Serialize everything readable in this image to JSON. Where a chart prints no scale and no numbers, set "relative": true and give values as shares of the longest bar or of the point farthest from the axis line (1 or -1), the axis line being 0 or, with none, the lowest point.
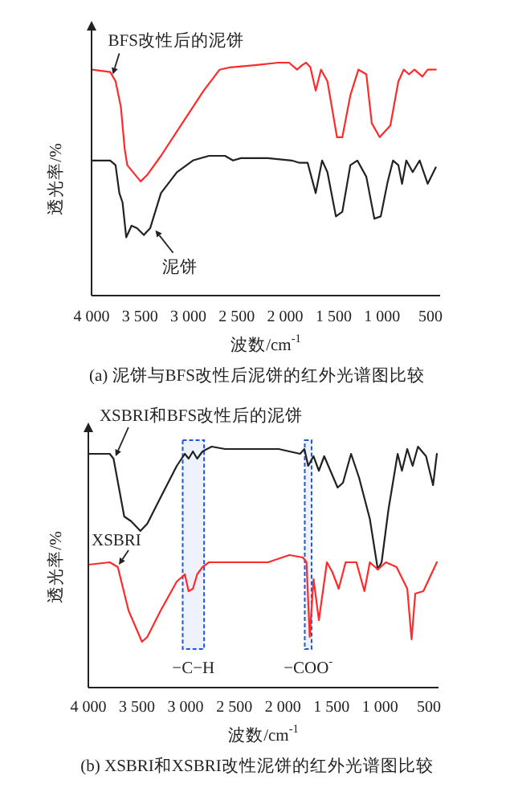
{
  "chart_data": [
    {
      "type": "line",
      "title": "(a) 泥饼与BFS改性后泥饼的红外光谱图比较",
      "xlabel": "波数/cm$^{-1}$",
      "ylabel": "透光率/%",
      "relative": true,
      "xlim": [
        4000,
        400
      ],
      "xticks": [
        {
          "value": 4000,
          "label": "4 000"
        },
        {
          "value": 3500,
          "label": "3 500"
        },
        {
          "value": 3000,
          "label": "3 000"
        },
        {
          "value": 2500,
          "label": "2 500"
        },
        {
          "value": 2000,
          "label": "2 000"
        },
        {
          "value": 1500,
          "label": "1 500"
        },
        {
          "value": 1000,
          "label": "1 000"
        },
        500
      ],
      "series": [
        {
          "color": "#ff2a2a",
          "x": [
            4000,
            3807,
            3752,
            3697,
            3658,
            3631,
            3493,
            3421,
            3283,
            3063,
            2842,
            2677,
            2567,
            2291,
            2071,
            1961,
            1878,
            1823,
            1784,
            1740,
            1685,
            1630,
            1564,
            1465,
            1410,
            1327,
            1244,
            1162,
            1106,
            1024,
            914,
            831,
            776,
            721,
            665,
            583,
            528,
            445
          ],
          "values": [
            0.97,
            0.96,
            0.92,
            0.81,
            0.63,
            0.56,
            0.49,
            0.52,
            0.6,
            0.74,
            0.88,
            0.97,
            0.98,
            0.99,
            1.0,
            1.0,
            0.97,
            0.99,
            1.0,
            0.98,
            0.88,
            0.97,
            0.92,
            0.68,
            0.68,
            0.86,
            0.97,
            0.95,
            0.74,
            0.68,
            0.73,
            0.92,
            0.97,
            0.95,
            0.97,
            0.94,
            0.97,
            0.97
          ]
        },
        {
          "color": "#222222",
          "x": [
            4000,
            3807,
            3752,
            3713,
            3680,
            3642,
            3587,
            3531,
            3460,
            3394,
            3283,
            3118,
            2953,
            2787,
            2622,
            2539,
            2457,
            2181,
            1933,
            1851,
            1768,
            1685,
            1619,
            1564,
            1476,
            1410,
            1327,
            1255,
            1162,
            1079,
            1013,
            941,
            886,
            831,
            793,
            749,
            683,
            611,
            528,
            445
          ],
          "values": [
            0.58,
            0.58,
            0.56,
            0.44,
            0.4,
            0.25,
            0.3,
            0.29,
            0.26,
            0.29,
            0.44,
            0.53,
            0.58,
            0.6,
            0.6,
            0.58,
            0.59,
            0.59,
            0.58,
            0.57,
            0.57,
            0.44,
            0.58,
            0.53,
            0.34,
            0.36,
            0.56,
            0.58,
            0.51,
            0.33,
            0.34,
            0.49,
            0.58,
            0.56,
            0.48,
            0.58,
            0.53,
            0.58,
            0.48,
            0.55
          ]
        }
      ],
      "annotations": [
        {
          "text": "BFS改性后的泥饼",
          "x": 3780,
          "y": 0.95
        },
        {
          "text": "泥饼",
          "x": 3340,
          "y": 0.28
        }
      ]
    },
    {
      "type": "line",
      "title": "(b) XSBRI和XSBRI改性泥饼的红外光谱图比较",
      "xlabel": "波数/cm$^{-1}$",
      "ylabel": "透光率/%",
      "relative": true,
      "xlim": [
        4000,
        400
      ],
      "xticks": [
        {
          "value": 4000,
          "label": "4 000"
        },
        {
          "value": 3500,
          "label": "3 500"
        },
        {
          "value": 3000,
          "label": "3 000"
        },
        {
          "value": 2500,
          "label": "2 500"
        },
        {
          "value": 2000,
          "label": "2 000"
        },
        {
          "value": 1500,
          "label": "1 500"
        },
        {
          "value": 1000,
          "label": "1 000"
        },
        500
      ],
      "series": [
        {
          "color": "#222222",
          "x": [
            4000,
            3780,
            3741,
            3686,
            3631,
            3559,
            3465,
            3394,
            3256,
            3091,
            3008,
            2969,
            2925,
            2881,
            2826,
            2732,
            2594,
            2319,
            2043,
            1823,
            1779,
            1740,
            1685,
            1630,
            1575,
            1437,
            1382,
            1299,
            1216,
            1106,
            1024,
            985,
            914,
            820,
            776,
            721,
            666,
            611,
            528,
            456,
            417
          ],
          "values": [
            0.97,
            0.97,
            0.95,
            0.83,
            0.71,
            0.69,
            0.65,
            0.68,
            0.79,
            0.92,
            0.97,
            0.95,
            0.98,
            0.95,
            0.98,
            1.0,
            0.99,
            0.99,
            0.99,
            0.97,
            0.99,
            0.92,
            0.96,
            0.9,
            0.96,
            0.83,
            0.85,
            0.97,
            0.87,
            0.7,
            0.49,
            0.52,
            0.74,
            0.97,
            0.9,
            0.99,
            0.92,
            1.0,
            0.96,
            0.84,
            0.97
          ]
        },
        {
          "color": "#ff2a2a",
          "x": [
            4000,
            3780,
            3697,
            3587,
            3449,
            3394,
            3256,
            3091,
            3008,
            2969,
            2925,
            2881,
            2826,
            2760,
            2153,
            1933,
            1795,
            1757,
            1724,
            1685,
            1630,
            1547,
            1492,
            1426,
            1355,
            1244,
            1162,
            1106,
            1024,
            941,
            831,
            721,
            677,
            639,
            556,
            417
          ],
          "values": [
            0.51,
            0.52,
            0.5,
            0.32,
            0.19,
            0.21,
            0.32,
            0.44,
            0.47,
            0.4,
            0.41,
            0.47,
            0.5,
            0.52,
            0.52,
            0.55,
            0.54,
            0.52,
            0.21,
            0.45,
            0.28,
            0.52,
            0.48,
            0.41,
            0.52,
            0.52,
            0.4,
            0.52,
            0.49,
            0.52,
            0.5,
            0.41,
            0.2,
            0.39,
            0.4,
            0.52
          ]
        }
      ],
      "bands": [
        {
          "axis": "x",
          "from": 3030,
          "to": 2810,
          "label": "−C−H",
          "color": "#2255dd"
        },
        {
          "axis": "x",
          "from": 1775,
          "to": 1705,
          "label": "−COO$^{-}$",
          "color": "#2255dd"
        }
      ],
      "annotations": [
        {
          "text": "XSBRI和BFS改性后的泥饼",
          "x": 3720,
          "y": 0.96
        },
        {
          "text": "XSBRI",
          "x": 3686,
          "y": 0.51
        }
      ]
    }
  ]
}
